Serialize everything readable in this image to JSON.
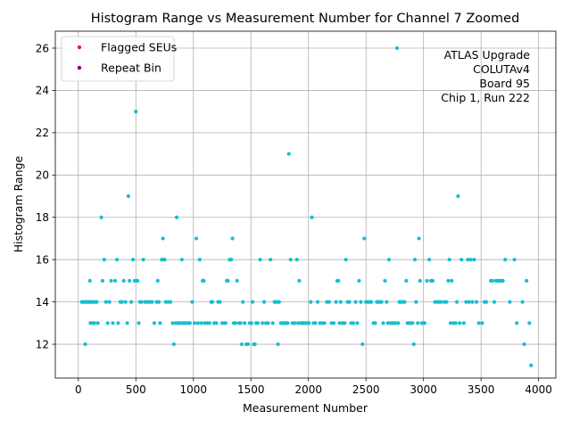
{
  "chart_data": {
    "type": "scatter",
    "title": "Histogram Range vs Measurement Number for Channel 7 Zoomed",
    "xlabel": "Measurement Number",
    "ylabel": "Histogram Range",
    "xlim": [
      -200,
      4150
    ],
    "ylim": [
      10.4,
      26.8
    ],
    "xticks": [
      0,
      500,
      1000,
      1500,
      2000,
      2500,
      3000,
      3500,
      4000
    ],
    "yticks": [
      12,
      14,
      16,
      18,
      20,
      22,
      24,
      26
    ],
    "grid": true,
    "legend_position": "top-left",
    "legend": [
      {
        "label": "Flagged SEUs",
        "color": "#d62728"
      },
      {
        "label": "Repeat Bin",
        "color": "#800080"
      }
    ],
    "annotation": [
      "ATLAS Upgrade",
      "COLUTAv4",
      "Board 95",
      "Chip 1, Run 222"
    ],
    "series": [
      {
        "color": "#17becf",
        "points": [
          [
            30,
            14
          ],
          [
            40,
            14
          ],
          [
            50,
            14
          ],
          [
            60,
            12
          ],
          [
            65,
            14
          ],
          [
            75,
            14
          ],
          [
            85,
            14
          ],
          [
            95,
            14
          ],
          [
            100,
            15
          ],
          [
            105,
            13
          ],
          [
            110,
            14
          ],
          [
            120,
            14
          ],
          [
            125,
            13
          ],
          [
            130,
            14
          ],
          [
            140,
            13
          ],
          [
            150,
            14
          ],
          [
            160,
            14
          ],
          [
            170,
            13
          ],
          [
            200,
            18
          ],
          [
            210,
            15
          ],
          [
            225,
            16
          ],
          [
            240,
            14
          ],
          [
            255,
            13
          ],
          [
            270,
            14
          ],
          [
            285,
            15
          ],
          [
            300,
            13
          ],
          [
            320,
            15
          ],
          [
            335,
            16
          ],
          [
            345,
            13
          ],
          [
            365,
            14
          ],
          [
            380,
            14
          ],
          [
            395,
            15
          ],
          [
            410,
            14
          ],
          [
            425,
            13
          ],
          [
            435,
            19
          ],
          [
            445,
            15
          ],
          [
            460,
            14
          ],
          [
            475,
            16
          ],
          [
            490,
            15
          ],
          [
            500,
            23
          ],
          [
            505,
            15
          ],
          [
            515,
            15
          ],
          [
            525,
            13
          ],
          [
            535,
            14
          ],
          [
            550,
            14
          ],
          [
            565,
            16
          ],
          [
            580,
            14
          ],
          [
            600,
            14
          ],
          [
            620,
            14
          ],
          [
            640,
            14
          ],
          [
            660,
            13
          ],
          [
            680,
            14
          ],
          [
            690,
            15
          ],
          [
            700,
            14
          ],
          [
            710,
            13
          ],
          [
            725,
            16
          ],
          [
            735,
            17
          ],
          [
            740,
            16
          ],
          [
            750,
            16
          ],
          [
            760,
            14
          ],
          [
            780,
            14
          ],
          [
            800,
            14
          ],
          [
            820,
            13
          ],
          [
            830,
            12
          ],
          [
            845,
            13
          ],
          [
            855,
            18
          ],
          [
            865,
            13
          ],
          [
            880,
            13
          ],
          [
            890,
            13
          ],
          [
            900,
            16
          ],
          [
            910,
            13
          ],
          [
            920,
            13
          ],
          [
            935,
            13
          ],
          [
            955,
            13
          ],
          [
            970,
            13
          ],
          [
            990,
            14
          ],
          [
            1010,
            13
          ],
          [
            1025,
            17
          ],
          [
            1040,
            13
          ],
          [
            1055,
            16
          ],
          [
            1070,
            13
          ],
          [
            1080,
            15
          ],
          [
            1090,
            15
          ],
          [
            1100,
            13
          ],
          [
            1120,
            13
          ],
          [
            1140,
            13
          ],
          [
            1155,
            14
          ],
          [
            1165,
            14
          ],
          [
            1180,
            13
          ],
          [
            1200,
            13
          ],
          [
            1215,
            14
          ],
          [
            1230,
            14
          ],
          [
            1250,
            13
          ],
          [
            1265,
            13
          ],
          [
            1280,
            13
          ],
          [
            1290,
            15
          ],
          [
            1300,
            15
          ],
          [
            1315,
            16
          ],
          [
            1330,
            16
          ],
          [
            1340,
            17
          ],
          [
            1350,
            13
          ],
          [
            1365,
            13
          ],
          [
            1380,
            15
          ],
          [
            1395,
            13
          ],
          [
            1410,
            13
          ],
          [
            1420,
            12
          ],
          [
            1430,
            14
          ],
          [
            1445,
            13
          ],
          [
            1460,
            12
          ],
          [
            1475,
            12
          ],
          [
            1490,
            13
          ],
          [
            1505,
            13
          ],
          [
            1515,
            14
          ],
          [
            1525,
            12
          ],
          [
            1535,
            12
          ],
          [
            1545,
            13
          ],
          [
            1560,
            13
          ],
          [
            1580,
            16
          ],
          [
            1600,
            13
          ],
          [
            1615,
            14
          ],
          [
            1630,
            13
          ],
          [
            1650,
            13
          ],
          [
            1670,
            16
          ],
          [
            1690,
            13
          ],
          [
            1705,
            14
          ],
          [
            1715,
            14
          ],
          [
            1725,
            14
          ],
          [
            1735,
            12
          ],
          [
            1745,
            14
          ],
          [
            1760,
            13
          ],
          [
            1775,
            13
          ],
          [
            1790,
            13
          ],
          [
            1800,
            13
          ],
          [
            1810,
            13
          ],
          [
            1820,
            13
          ],
          [
            1830,
            21
          ],
          [
            1845,
            16
          ],
          [
            1860,
            13
          ],
          [
            1880,
            13
          ],
          [
            1900,
            16
          ],
          [
            1910,
            13
          ],
          [
            1920,
            15
          ],
          [
            1935,
            13
          ],
          [
            1950,
            13
          ],
          [
            1960,
            13
          ],
          [
            1975,
            13
          ],
          [
            1990,
            13
          ],
          [
            2005,
            13
          ],
          [
            2020,
            14
          ],
          [
            2030,
            18
          ],
          [
            2045,
            13
          ],
          [
            2060,
            13
          ],
          [
            2080,
            14
          ],
          [
            2100,
            13
          ],
          [
            2120,
            13
          ],
          [
            2140,
            13
          ],
          [
            2160,
            14
          ],
          [
            2180,
            14
          ],
          [
            2200,
            13
          ],
          [
            2220,
            13
          ],
          [
            2240,
            14
          ],
          [
            2250,
            15
          ],
          [
            2260,
            15
          ],
          [
            2270,
            13
          ],
          [
            2280,
            14
          ],
          [
            2295,
            13
          ],
          [
            2305,
            13
          ],
          [
            2315,
            13
          ],
          [
            2325,
            16
          ],
          [
            2340,
            14
          ],
          [
            2355,
            14
          ],
          [
            2370,
            13
          ],
          [
            2390,
            13
          ],
          [
            2410,
            14
          ],
          [
            2425,
            13
          ],
          [
            2440,
            15
          ],
          [
            2455,
            14
          ],
          [
            2470,
            12
          ],
          [
            2485,
            17
          ],
          [
            2500,
            14
          ],
          [
            2515,
            14
          ],
          [
            2530,
            14
          ],
          [
            2545,
            14
          ],
          [
            2565,
            13
          ],
          [
            2580,
            13
          ],
          [
            2595,
            14
          ],
          [
            2610,
            14
          ],
          [
            2620,
            14
          ],
          [
            2635,
            14
          ],
          [
            2650,
            13
          ],
          [
            2665,
            15
          ],
          [
            2680,
            14
          ],
          [
            2690,
            13
          ],
          [
            2700,
            16
          ],
          [
            2710,
            13
          ],
          [
            2725,
            13
          ],
          [
            2740,
            13
          ],
          [
            2755,
            13
          ],
          [
            2770,
            26
          ],
          [
            2780,
            13
          ],
          [
            2790,
            14
          ],
          [
            2805,
            14
          ],
          [
            2820,
            14
          ],
          [
            2835,
            14
          ],
          [
            2850,
            15
          ],
          [
            2860,
            13
          ],
          [
            2875,
            13
          ],
          [
            2890,
            13
          ],
          [
            2905,
            13
          ],
          [
            2915,
            12
          ],
          [
            2925,
            16
          ],
          [
            2935,
            14
          ],
          [
            2950,
            13
          ],
          [
            2960,
            17
          ],
          [
            2970,
            15
          ],
          [
            2985,
            13
          ],
          [
            3000,
            13
          ],
          [
            3010,
            13
          ],
          [
            3030,
            15
          ],
          [
            3050,
            16
          ],
          [
            3065,
            15
          ],
          [
            3080,
            15
          ],
          [
            3100,
            14
          ],
          [
            3120,
            14
          ],
          [
            3135,
            14
          ],
          [
            3150,
            14
          ],
          [
            3180,
            14
          ],
          [
            3200,
            14
          ],
          [
            3215,
            15
          ],
          [
            3225,
            16
          ],
          [
            3235,
            13
          ],
          [
            3245,
            15
          ],
          [
            3260,
            13
          ],
          [
            3280,
            13
          ],
          [
            3290,
            14
          ],
          [
            3300,
            19
          ],
          [
            3315,
            13
          ],
          [
            3330,
            16
          ],
          [
            3350,
            13
          ],
          [
            3370,
            14
          ],
          [
            3385,
            16
          ],
          [
            3395,
            14
          ],
          [
            3410,
            16
          ],
          [
            3425,
            14
          ],
          [
            3440,
            16
          ],
          [
            3460,
            14
          ],
          [
            3480,
            13
          ],
          [
            3510,
            13
          ],
          [
            3530,
            14
          ],
          [
            3545,
            14
          ],
          [
            3585,
            15
          ],
          [
            3600,
            15
          ],
          [
            3615,
            14
          ],
          [
            3630,
            15
          ],
          [
            3645,
            15
          ],
          [
            3660,
            15
          ],
          [
            3675,
            15
          ],
          [
            3690,
            15
          ],
          [
            3710,
            16
          ],
          [
            3750,
            14
          ],
          [
            3790,
            16
          ],
          [
            3810,
            13
          ],
          [
            3860,
            14
          ],
          [
            3875,
            12
          ],
          [
            3895,
            15
          ],
          [
            3920,
            13
          ],
          [
            3935,
            11
          ]
        ]
      }
    ]
  }
}
